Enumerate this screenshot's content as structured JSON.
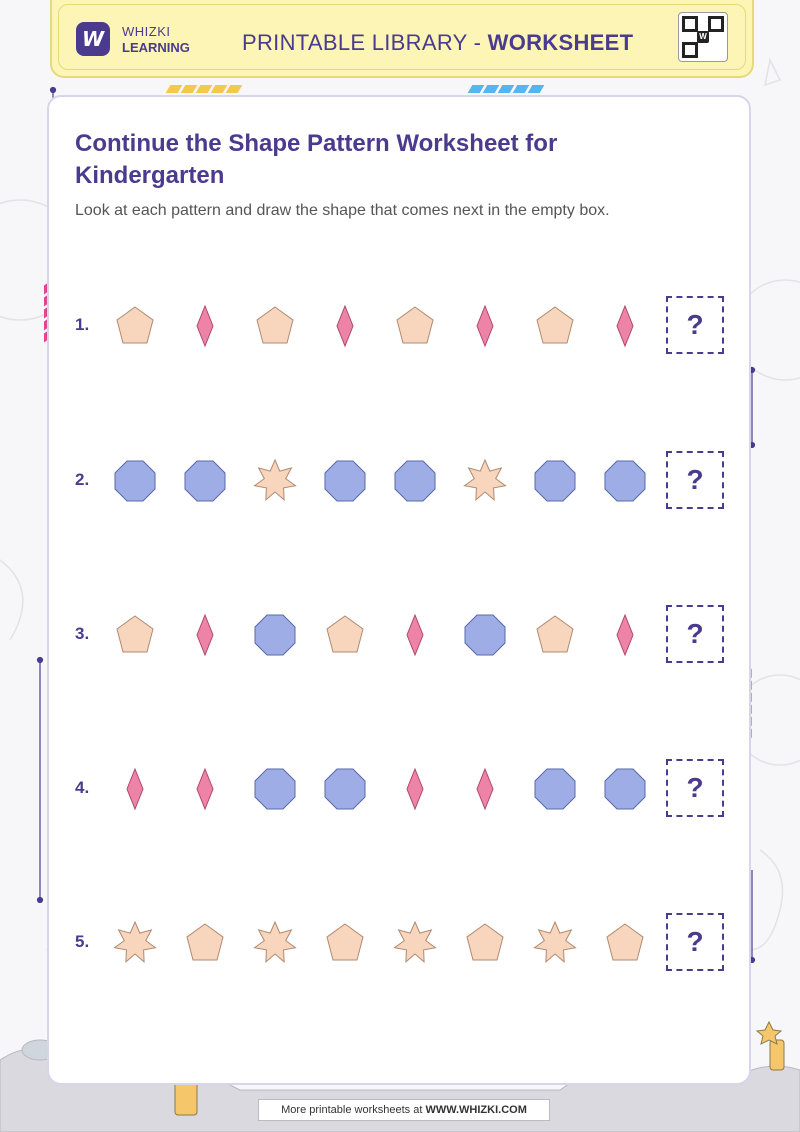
{
  "header": {
    "logo_letter": "W",
    "brand_line1": "WHIZKI",
    "brand_line2": "LEARNING",
    "title_prefix": "PRINTABLE LIBRARY - ",
    "title_bold": "WORKSHEET"
  },
  "worksheet": {
    "title": "Continue the Shape Pattern Worksheet for Kindergarten",
    "instructions": "Look at each pattern and draw the shape that comes next in the empty box.",
    "answer_placeholder": "?",
    "rows": [
      {
        "number": "1.",
        "shapes": [
          "pentagon",
          "diamond",
          "pentagon",
          "diamond",
          "pentagon",
          "diamond",
          "pentagon",
          "diamond"
        ]
      },
      {
        "number": "2.",
        "shapes": [
          "octagon",
          "octagon",
          "star",
          "octagon",
          "octagon",
          "star",
          "octagon",
          "octagon"
        ]
      },
      {
        "number": "3.",
        "shapes": [
          "pentagon",
          "diamond",
          "octagon",
          "pentagon",
          "diamond",
          "octagon",
          "pentagon",
          "diamond"
        ]
      },
      {
        "number": "4.",
        "shapes": [
          "diamond",
          "diamond",
          "octagon",
          "octagon",
          "diamond",
          "diamond",
          "octagon",
          "octagon"
        ]
      },
      {
        "number": "5.",
        "shapes": [
          "star",
          "pentagon",
          "star",
          "pentagon",
          "star",
          "pentagon",
          "star",
          "pentagon"
        ]
      }
    ]
  },
  "colors": {
    "pentagon": "#f8d5bd",
    "diamond": "#ee83a8",
    "octagon": "#9fade6",
    "star": "#f8d5bd",
    "accent": "#4a3b8f",
    "header_bg": "#fdf5b5"
  },
  "footer": {
    "prefix": "More printable worksheets at ",
    "site": "WWW.WHIZKI.COM"
  }
}
